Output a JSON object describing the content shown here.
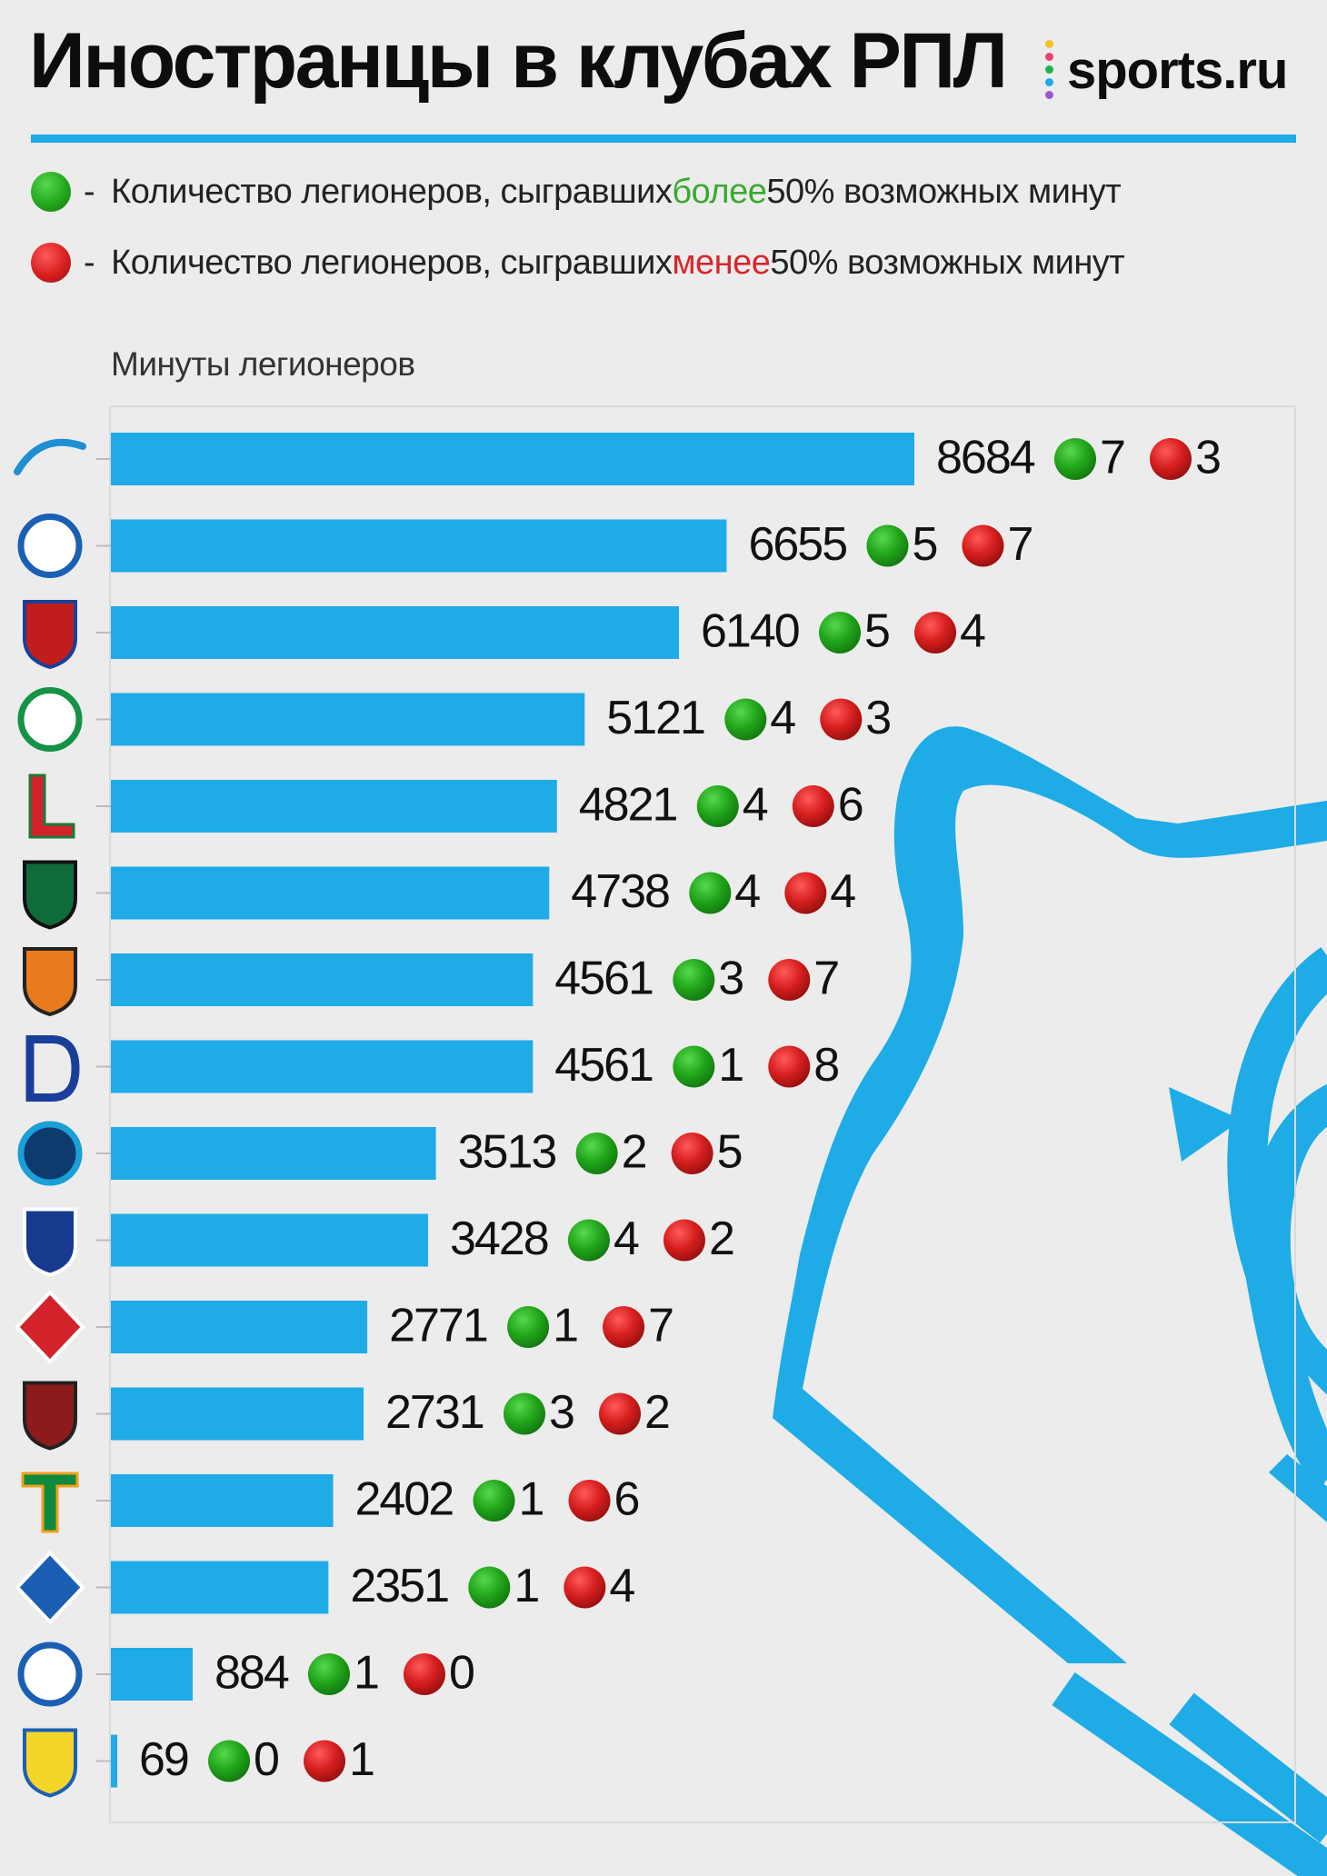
{
  "title": "Иностранцы в клубах РПЛ",
  "logo": {
    "text": "sports.ru",
    "dot_colors": [
      "#f2c02c",
      "#e8416e",
      "#22b24c",
      "#1fabe6",
      "#9b59d0"
    ]
  },
  "legend": {
    "green": {
      "prefix": "Количество легионеров, сыгравших ",
      "highlight": "более",
      "suffix": " 50% возможных минут",
      "color": "#3aa832"
    },
    "red": {
      "prefix": "Количество легионеров, сыгравших ",
      "highlight": "менее",
      "suffix": " 50% возможных минут",
      "color": "#d8262c"
    },
    "dash": "-"
  },
  "colors": {
    "bar": "#1fabe6",
    "green": "#22a61b",
    "red": "#d71f1f",
    "bear": "#1fabe6"
  },
  "chart_data": {
    "type": "bar",
    "orientation": "horizontal",
    "xlabel": "Минуты легионеров",
    "categories": [
      "zenit-logo",
      "orenburg-logo",
      "cska-logo",
      "akhmat-logo",
      "lokomotiv-logo",
      "krasnodar-logo",
      "ural-logo",
      "dynamo-logo",
      "sochi-logo",
      "nizhny-novgorod-logo",
      "spartak-logo",
      "khimki-logo",
      "torpedo-logo",
      "krylia-sovetov-logo",
      "fakel-logo",
      "rostov-logo"
    ],
    "values": [
      8684,
      6655,
      6140,
      5121,
      4821,
      4738,
      4561,
      4561,
      3513,
      3428,
      2771,
      2731,
      2402,
      2351,
      884,
      69
    ],
    "series": [
      {
        "values": [
          8684,
          6655,
          6140,
          5121,
          4821,
          4738,
          4561,
          4561,
          3513,
          3428,
          2771,
          2731,
          2402,
          2351,
          884,
          69
        ]
      },
      {
        "values": [
          7,
          5,
          5,
          4,
          4,
          4,
          3,
          1,
          2,
          4,
          1,
          3,
          1,
          1,
          1,
          0
        ]
      },
      {
        "values": [
          3,
          7,
          4,
          3,
          6,
          4,
          7,
          8,
          5,
          2,
          7,
          2,
          6,
          4,
          0,
          1
        ]
      }
    ],
    "xlim": [
      0,
      8684
    ],
    "grid": false,
    "legend_placement": "top"
  }
}
